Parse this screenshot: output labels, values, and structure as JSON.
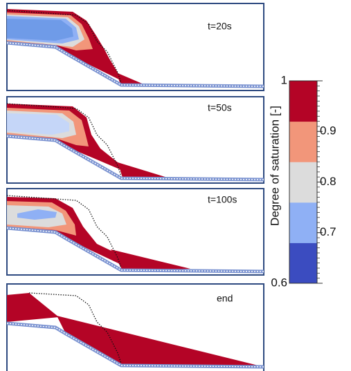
{
  "panels": [
    {
      "label": "t=20s"
    },
    {
      "label": "t=50s"
    },
    {
      "label": "t=100s"
    },
    {
      "label": "end"
    }
  ],
  "colorbar": {
    "label": "Degree of saturation [-]",
    "lim": [
      0.6,
      1
    ],
    "ticks": [
      0.6,
      0.7,
      0.8,
      0.9,
      1
    ],
    "colors": [
      "#3b4cc0",
      "#8fb0f5",
      "#dcdcdc",
      "#f2967a",
      "#b40426"
    ]
  }
}
